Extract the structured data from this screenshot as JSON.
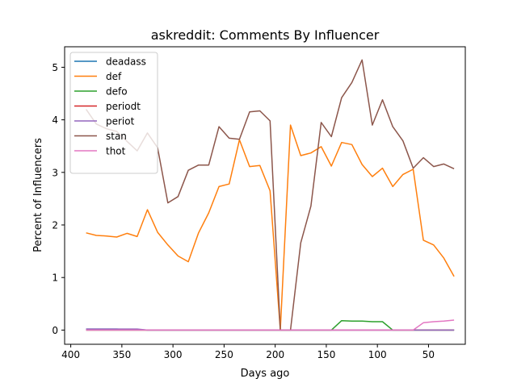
{
  "chart_data": {
    "type": "line",
    "title": "askreddit: Comments By Influencer",
    "xlabel": "Days ago",
    "ylabel": "Percent of Influencers",
    "xlim": [
      406,
      14
    ],
    "ylim": [
      -0.27,
      5.39
    ],
    "x_inverted": true,
    "xticks": [
      400,
      350,
      300,
      250,
      200,
      150,
      100,
      50
    ],
    "yticks": [
      0,
      1,
      2,
      3,
      4,
      5
    ],
    "grid": false,
    "legend_position": "upper-left",
    "x": [
      385,
      375,
      365,
      355,
      345,
      335,
      325,
      315,
      305,
      295,
      285,
      275,
      265,
      255,
      245,
      235,
      225,
      215,
      205,
      195,
      185,
      175,
      165,
      155,
      145,
      135,
      125,
      115,
      105,
      95,
      85,
      75,
      65,
      55,
      45,
      35,
      25
    ],
    "series": [
      {
        "name": "deadass",
        "color": "#1f77b4",
        "values": [
          0.02,
          0.02,
          0.02,
          0.02,
          0.01,
          0.01,
          0.0,
          0.0,
          0.0,
          0.0,
          0.0,
          0.0,
          0.0,
          0.0,
          0.0,
          0.0,
          0.0,
          0.0,
          0.0,
          0.0,
          0.0,
          0.0,
          0.0,
          0.0,
          0.0,
          0.0,
          0.0,
          0.0,
          0.0,
          0.0,
          0.0,
          0.0,
          0.0,
          0.0,
          0.0,
          0.0,
          0.0
        ]
      },
      {
        "name": "def",
        "color": "#ff7f0e",
        "values": [
          1.85,
          1.8,
          1.79,
          1.77,
          1.84,
          1.78,
          2.29,
          1.86,
          1.62,
          1.41,
          1.3,
          1.85,
          2.23,
          2.73,
          2.78,
          3.62,
          3.11,
          3.13,
          2.65,
          0.0,
          3.9,
          3.32,
          3.37,
          3.49,
          3.12,
          3.57,
          3.53,
          3.15,
          2.92,
          3.08,
          2.73,
          2.96,
          3.06,
          1.71,
          1.62,
          1.37,
          1.02
        ]
      },
      {
        "name": "defo",
        "color": "#2ca02c",
        "values": [
          0.0,
          0.0,
          0.0,
          0.0,
          0.0,
          0.0,
          0.0,
          0.0,
          0.0,
          0.0,
          0.0,
          0.0,
          0.0,
          0.0,
          0.0,
          0.0,
          0.0,
          0.0,
          0.0,
          0.0,
          0.0,
          0.0,
          0.0,
          0.0,
          0.0,
          0.18,
          0.17,
          0.17,
          0.16,
          0.16,
          0.0,
          0.0,
          0.0,
          0.0,
          0.0,
          0.0,
          0.0
        ]
      },
      {
        "name": "periodt",
        "color": "#d62728",
        "values": [
          0.0,
          0.0,
          0.0,
          0.0,
          0.0,
          0.0,
          0.0,
          0.0,
          0.0,
          0.0,
          0.0,
          0.0,
          0.0,
          0.0,
          0.0,
          0.0,
          0.0,
          0.0,
          0.0,
          0.0,
          0.0,
          0.0,
          0.0,
          0.0,
          0.0,
          0.0,
          0.0,
          0.0,
          0.0,
          0.0,
          0.0,
          0.0,
          0.0,
          0.0,
          0.0,
          0.0,
          0.0
        ]
      },
      {
        "name": "periot",
        "color": "#9467bd",
        "values": [
          0.02,
          0.02,
          0.02,
          0.02,
          0.02,
          0.02,
          0.0,
          0.0,
          0.0,
          0.0,
          0.0,
          0.0,
          0.0,
          0.0,
          0.0,
          0.0,
          0.0,
          0.0,
          0.0,
          0.0,
          0.0,
          0.0,
          0.0,
          0.0,
          0.0,
          0.0,
          0.0,
          0.0,
          0.0,
          0.0,
          0.0,
          0.0,
          0.0,
          0.0,
          0.0,
          0.0,
          0.0
        ]
      },
      {
        "name": "stan",
        "color": "#8c564b",
        "values": [
          4.2,
          3.92,
          3.83,
          3.78,
          3.59,
          3.41,
          3.75,
          3.47,
          2.42,
          2.54,
          3.04,
          3.14,
          3.14,
          3.87,
          3.65,
          3.63,
          4.15,
          4.17,
          3.98,
          0.0,
          0.0,
          1.66,
          2.36,
          3.95,
          3.68,
          4.42,
          4.71,
          5.14,
          3.9,
          4.38,
          3.87,
          3.6,
          3.08,
          3.28,
          3.11,
          3.16,
          3.07
        ]
      },
      {
        "name": "thot",
        "color": "#e377c2",
        "values": [
          0.0,
          0.0,
          0.0,
          0.0,
          0.0,
          0.0,
          0.0,
          0.0,
          0.0,
          0.0,
          0.0,
          0.0,
          0.0,
          0.0,
          0.0,
          0.0,
          0.0,
          0.0,
          0.0,
          0.0,
          0.0,
          0.0,
          0.0,
          0.0,
          0.0,
          0.0,
          0.0,
          0.0,
          0.0,
          0.0,
          0.0,
          0.0,
          0.0,
          0.14,
          0.16,
          0.17,
          0.19
        ]
      }
    ]
  }
}
